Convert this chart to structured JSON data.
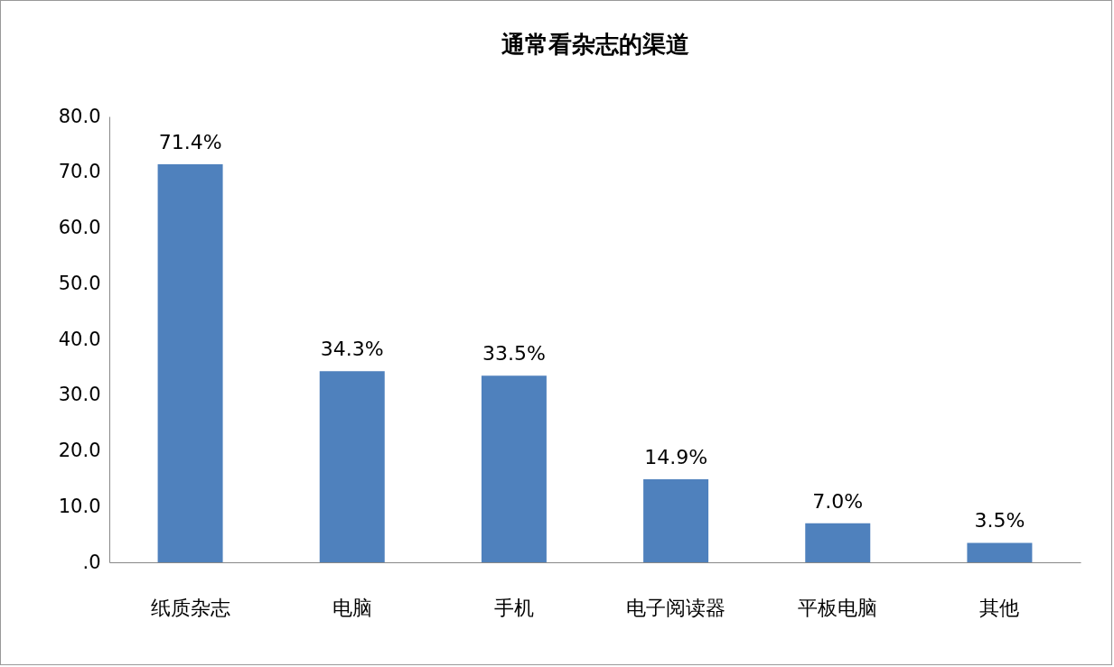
{
  "chart_data": {
    "type": "bar",
    "title": "通常看杂志的渠道",
    "categories": [
      "纸质杂志",
      "电脑",
      "手机",
      "电子阅读器",
      "平板电脑",
      "其他"
    ],
    "values": [
      71.4,
      34.3,
      33.5,
      14.9,
      7.0,
      3.5
    ],
    "value_labels": [
      "71.4%",
      "34.3%",
      "33.5%",
      "14.9%",
      "7.0%",
      "3.5%"
    ],
    "color": "#4f81bd",
    "ylim": [
      0,
      80
    ],
    "yticks": [
      {
        "value": 0,
        "label": ".0"
      },
      {
        "value": 10,
        "label": "10.0"
      },
      {
        "value": 20,
        "label": "20.0"
      },
      {
        "value": 30,
        "label": "30.0"
      },
      {
        "value": 40,
        "label": "40.0"
      },
      {
        "value": 50,
        "label": "50.0"
      },
      {
        "value": 60,
        "label": "60.0"
      },
      {
        "value": 70,
        "label": "70.0"
      },
      {
        "value": 80,
        "label": "80.0"
      }
    ],
    "grid": false
  }
}
